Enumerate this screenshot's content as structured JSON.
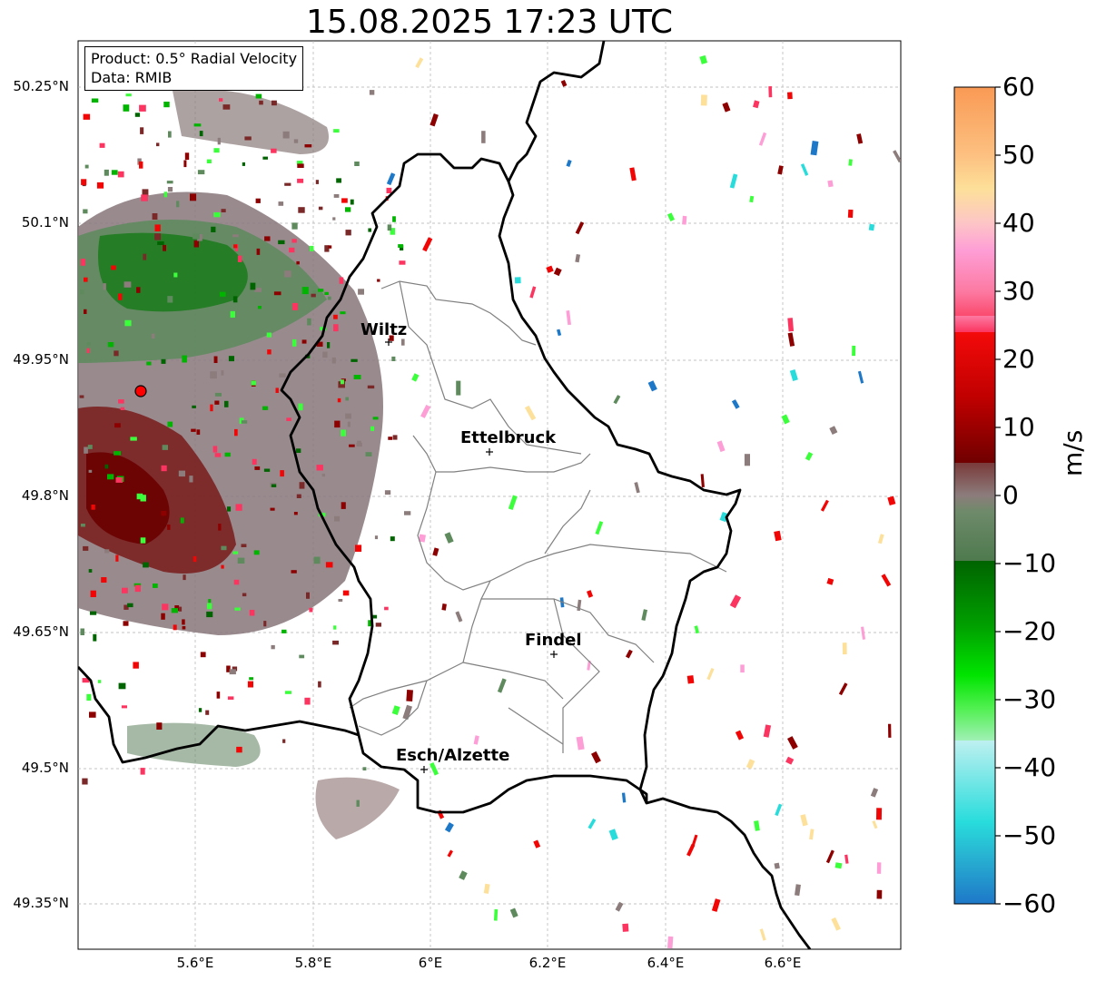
{
  "title": "15.08.2025 17:23 UTC",
  "info_box": {
    "product": "Product: 0.5° Radial Velocity",
    "data_source": "Data: RMIB"
  },
  "lat_labels": [
    "50.25°N",
    "50.1°N",
    "49.95°N",
    "49.8°N",
    "49.65°N",
    "49.5°N",
    "49.35°N"
  ],
  "lon_labels": [
    "5.6°E",
    "5.8°E",
    "6°E",
    "6.2°E",
    "6.4°E",
    "6.6°E"
  ],
  "cities": [
    {
      "name": "Wiltz"
    },
    {
      "name": "Ettelbruck"
    },
    {
      "name": "Findel"
    },
    {
      "name": "Esch/Alzette"
    }
  ],
  "colorbar": {
    "unit": "m/s",
    "ticks": [
      "60",
      "50",
      "40",
      "30",
      "20",
      "10",
      "0",
      "−10",
      "−20",
      "−30",
      "−40",
      "−50",
      "−60"
    ],
    "range": [
      -60,
      60
    ],
    "colors": {
      "c60": "#f99a55",
      "c50": "#fde09a",
      "c40": "#fe9ed6",
      "c30": "#fb3560",
      "c20": "#f20505",
      "c10": "#8c0000",
      "c8": "#7a2828",
      "c0": "#8c7c7c",
      "cm3": "#5e8a5e",
      "cm10": "#006400",
      "cm20": "#00b400",
      "cm30": "#3cff3c",
      "cm35": "#a0f0b4",
      "cm40": "#b4f0f0",
      "cm50": "#28dcdc",
      "cm60": "#1e78c8"
    }
  },
  "colors": {
    "border": "#000000",
    "canton": "#808080",
    "grid": "#b0b0b0",
    "radar_marker": "#ff0000"
  }
}
